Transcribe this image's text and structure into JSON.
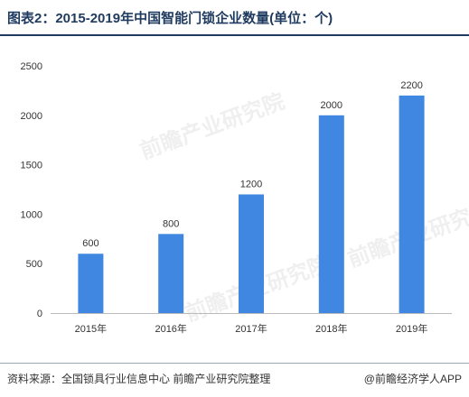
{
  "title": "图表2：2015-2019年中国智能门锁企业数量(单位：个)",
  "source": "资料来源：全国锁具行业信息中心 前瞻产业研究院整理",
  "brand": "@前瞻经济学人APP",
  "watermark": "前瞻产业研究院",
  "colors": {
    "bar": "#3f87e0",
    "title": "#1f3a5f",
    "axis": "#bbbbbb",
    "text": "#333333"
  },
  "chart_data": {
    "type": "bar",
    "title": "图表2：2015-2019年中国智能门锁企业数量(单位：个)",
    "xlabel": "",
    "ylabel": "",
    "categories": [
      "2015年",
      "2016年",
      "2017年",
      "2018年",
      "2019年"
    ],
    "values": [
      600,
      800,
      1200,
      2000,
      2200
    ],
    "value_labels": [
      "600",
      "800",
      "1200",
      "2000",
      "2200"
    ],
    "ylim": [
      0,
      2500
    ],
    "yticks": [
      0,
      500,
      1000,
      1500,
      2000,
      2500
    ],
    "grid": false,
    "legend": "none"
  }
}
